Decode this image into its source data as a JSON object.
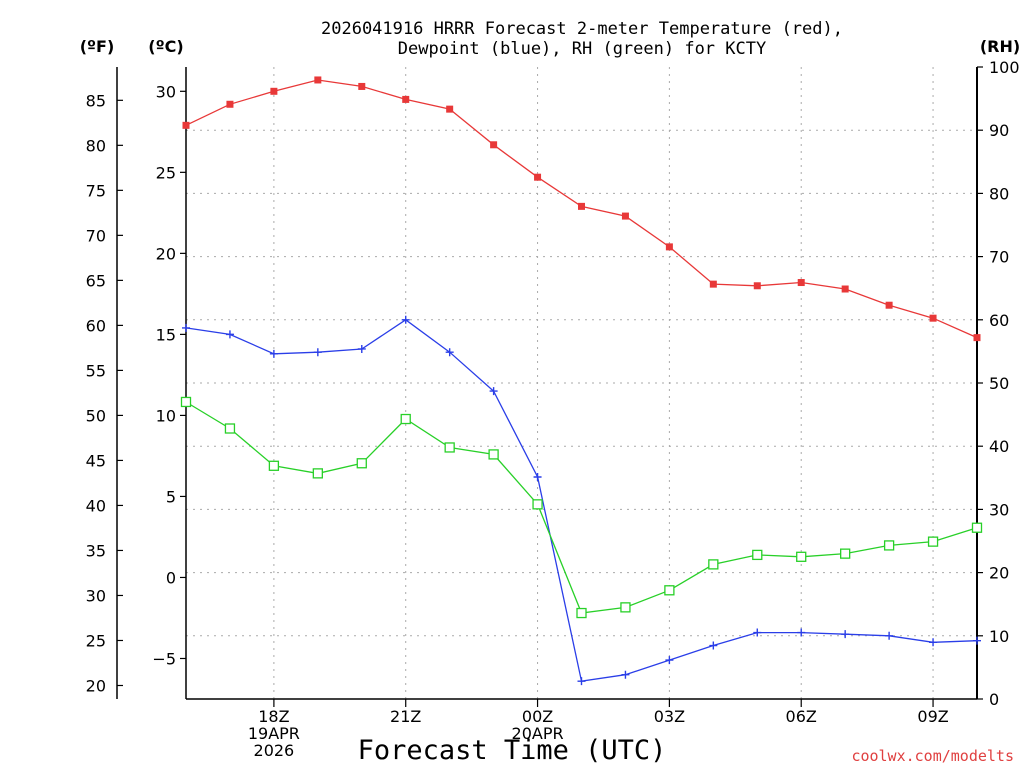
{
  "chart_data": {
    "type": "line",
    "title_line1": "2026041916 HRRR Forecast 2-meter Temperature (red),",
    "title_line2": "Dewpoint (blue), RH (green) for KCTY",
    "xlabel": "Forecast Time (UTC)",
    "credit": "coolwx.com/modelts",
    "units": {
      "fahrenheit": "(ºF)",
      "celsius": "(ºC)",
      "rh": "(RH)"
    },
    "x_hours": [
      16,
      17,
      18,
      19,
      20,
      21,
      22,
      23,
      24,
      25,
      26,
      27,
      28,
      29,
      30,
      31,
      32,
      33,
      34
    ],
    "x_range": [
      16,
      34
    ],
    "x_ticks": [
      {
        "hour": 18,
        "lines": [
          "18Z",
          "19APR",
          "2026"
        ]
      },
      {
        "hour": 21,
        "lines": [
          "21Z"
        ]
      },
      {
        "hour": 24,
        "lines": [
          "00Z",
          "20APR"
        ]
      },
      {
        "hour": 27,
        "lines": [
          "03Z"
        ]
      },
      {
        "hour": 30,
        "lines": [
          "06Z"
        ]
      },
      {
        "hour": 33,
        "lines": [
          "09Z"
        ]
      }
    ],
    "celsius_axis": {
      "range": [
        -7.5,
        31.5
      ],
      "ticks": [
        "−5",
        "0",
        "5",
        "10",
        "15",
        "20",
        "25",
        "30"
      ],
      "tick_values": [
        -5,
        0,
        5,
        10,
        15,
        20,
        25,
        30
      ]
    },
    "fahrenheit_axis": {
      "ticks": [
        "20",
        "25",
        "30",
        "35",
        "40",
        "45",
        "50",
        "55",
        "60",
        "65",
        "70",
        "75",
        "80",
        "85"
      ],
      "tick_values": [
        20,
        25,
        30,
        35,
        40,
        45,
        50,
        55,
        60,
        65,
        70,
        75,
        80,
        85
      ]
    },
    "rh_axis": {
      "range": [
        0,
        100
      ],
      "ticks": [
        "0",
        "10",
        "20",
        "30",
        "40",
        "50",
        "60",
        "70",
        "80",
        "90",
        "100"
      ],
      "tick_values": [
        0,
        10,
        20,
        30,
        40,
        50,
        60,
        70,
        80,
        90,
        100
      ]
    },
    "series": [
      {
        "name": "Temperature",
        "axis": "celsius",
        "color": "#e83838",
        "marker": "filled-square",
        "values": [
          27.9,
          29.2,
          30.0,
          30.7,
          30.3,
          29.5,
          28.9,
          26.7,
          24.7,
          22.9,
          22.3,
          20.4,
          18.1,
          18.0,
          18.2,
          17.8,
          16.8,
          16.0,
          14.8
        ]
      },
      {
        "name": "Dewpoint",
        "axis": "celsius",
        "color": "#2a3ee8",
        "marker": "plus",
        "values": [
          15.4,
          15.0,
          13.8,
          13.9,
          14.1,
          15.9,
          13.9,
          11.5,
          6.2,
          -6.4,
          -6.0,
          -5.1,
          -4.2,
          -3.4,
          -3.4,
          -3.5,
          -3.6,
          -4.0,
          -3.9
        ]
      },
      {
        "name": "RH",
        "axis": "rh",
        "color": "#28d028",
        "marker": "open-square",
        "values": [
          47.0,
          42.8,
          36.9,
          35.7,
          37.3,
          44.3,
          39.8,
          38.7,
          30.8,
          13.6,
          14.5,
          17.2,
          21.3,
          22.8,
          22.5,
          23.0,
          24.3,
          24.9,
          27.1
        ]
      }
    ]
  }
}
